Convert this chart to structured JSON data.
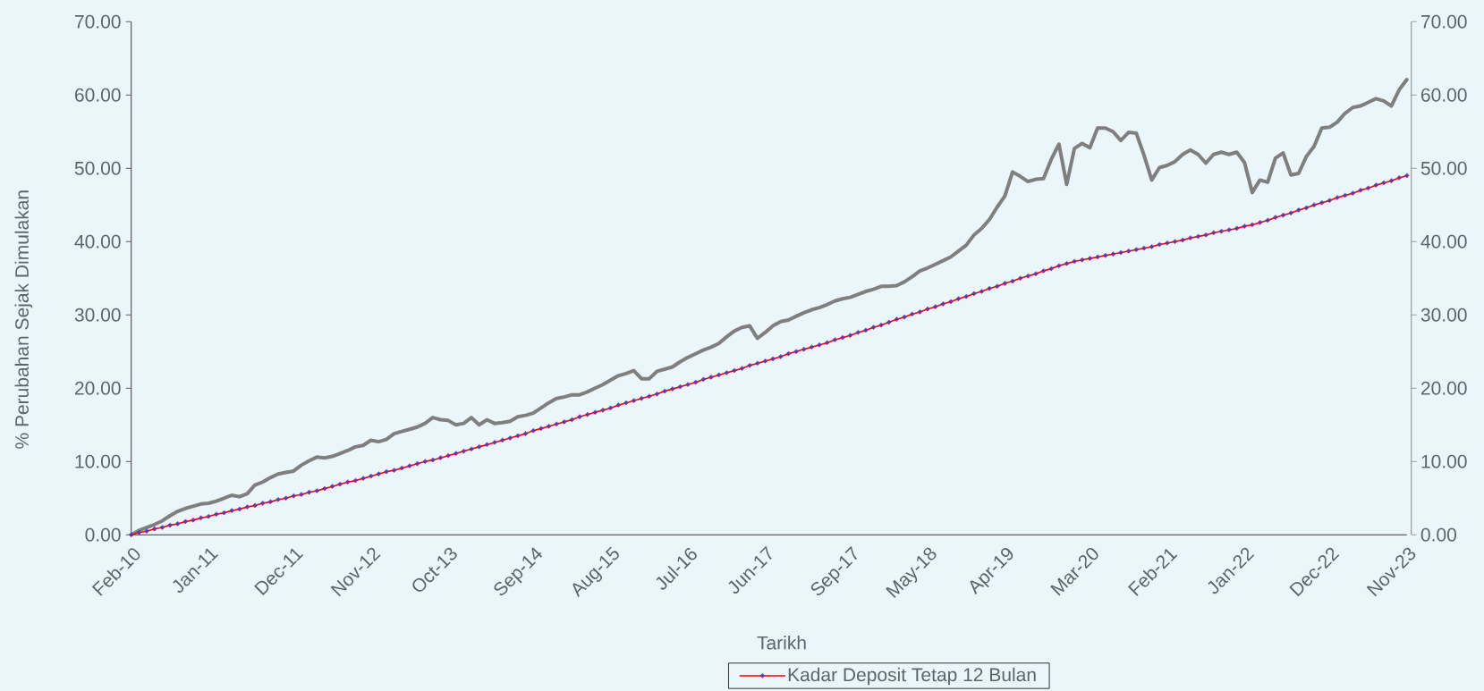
{
  "chart_data": {
    "type": "line",
    "xlabel": "Tarikh",
    "ylabel": "% Perubahan Sejak Dimulakan",
    "categories": [
      "Feb-10",
      null,
      null,
      null,
      null,
      null,
      null,
      null,
      null,
      null,
      "Jan-11",
      null,
      null,
      null,
      null,
      null,
      null,
      null,
      null,
      null,
      null,
      "Dec-11",
      null,
      null,
      null,
      null,
      null,
      null,
      null,
      null,
      null,
      "Nov-12",
      null,
      null,
      null,
      null,
      null,
      null,
      null,
      null,
      null,
      "Oct-13",
      null,
      null,
      null,
      null,
      null,
      null,
      null,
      null,
      null,
      null,
      "Sep-14",
      null,
      null,
      null,
      null,
      null,
      null,
      null,
      null,
      null,
      "Aug-15",
      null,
      null,
      null,
      null,
      null,
      null,
      null,
      null,
      null,
      "Jul-16",
      null,
      null,
      null,
      null,
      null,
      null,
      null,
      null,
      null,
      "Jun-17",
      null,
      null,
      null,
      null,
      null,
      null,
      null,
      null,
      null,
      null,
      "Sep-17",
      null,
      null,
      null,
      null,
      null,
      null,
      null,
      null,
      null,
      "May-18",
      null,
      null,
      null,
      null,
      null,
      null,
      null,
      null,
      null,
      "Apr-19",
      null,
      null,
      null,
      null,
      null,
      null,
      null,
      null,
      null,
      null,
      "Mar-20",
      null,
      null,
      null,
      null,
      null,
      null,
      null,
      null,
      null,
      "Feb-21",
      null,
      null,
      null,
      null,
      null,
      null,
      null,
      null,
      null,
      "Jan-22",
      null,
      null,
      null,
      null,
      null,
      null,
      null,
      null,
      null,
      null,
      "Dec-22",
      null,
      null,
      null,
      null,
      null,
      null,
      null,
      null,
      null,
      "Nov-23"
    ],
    "series": [
      {
        "color": "#7f7f7f",
        "values": [
          0,
          0.6,
          1.0,
          1.4,
          1.9,
          2.6,
          3.2,
          3.6,
          3.9,
          4.2,
          4.3,
          4.6,
          5.0,
          5.4,
          5.2,
          5.6,
          6.8,
          7.2,
          7.8,
          8.3,
          8.5,
          8.7,
          9.5,
          10.1,
          10.6,
          10.5,
          10.7,
          11.1,
          11.5,
          12.0,
          12.2,
          12.9,
          12.7,
          13.0,
          13.8,
          14.1,
          14.4,
          14.7,
          15.2,
          16.0,
          15.7,
          15.6,
          15.0,
          15.2,
          16.0,
          15.0,
          15.7,
          15.2,
          15.3,
          15.5,
          16.1,
          16.3,
          16.6,
          17.3,
          18.0,
          18.6,
          18.8,
          19.1,
          19.1,
          19.5,
          20.0,
          20.5,
          21.1,
          21.7,
          22.0,
          22.4,
          21.3,
          21.3,
          22.3,
          22.6,
          22.9,
          23.6,
          24.2,
          24.7,
          25.2,
          25.6,
          26.1,
          27.0,
          27.8,
          28.3,
          28.5,
          26.8,
          27.6,
          28.5,
          29.1,
          29.3,
          29.8,
          30.3,
          30.7,
          31.0,
          31.4,
          31.9,
          32.2,
          32.4,
          32.8,
          33.2,
          33.5,
          33.9,
          33.9,
          34.0,
          34.5,
          35.2,
          36.0,
          36.4,
          36.9,
          37.4,
          37.9,
          38.7,
          39.5,
          40.9,
          41.8,
          43.0,
          44.7,
          46.2,
          49.5,
          48.9,
          48.2,
          48.5,
          48.6,
          51.2,
          53.3,
          47.8,
          52.7,
          53.4,
          52.8,
          55.5,
          55.5,
          55.0,
          53.8,
          54.9,
          54.8,
          51.8,
          48.4,
          50.1,
          50.4,
          50.9,
          51.9,
          52.5,
          51.9,
          50.7,
          51.9,
          52.2,
          51.9,
          52.2,
          50.8,
          46.7,
          48.4,
          48.1,
          51.4,
          52.1,
          49.1,
          49.3,
          51.6,
          53.0,
          55.5,
          55.6,
          56.3,
          57.5,
          58.3,
          58.5,
          59.0,
          59.5,
          59.2,
          58.5,
          60.7,
          62.1
        ]
      },
      {
        "name": "Kadar Deposit Tetap 12 Bulan",
        "color": "#ff0000",
        "marker": "diamond",
        "values": [
          0,
          0.3,
          0.5,
          0.8,
          1.0,
          1.3,
          1.5,
          1.8,
          2.0,
          2.3,
          2.5,
          2.8,
          3.0,
          3.3,
          3.5,
          3.8,
          4.0,
          4.3,
          4.5,
          4.8,
          5.0,
          5.3,
          5.5,
          5.8,
          6.0,
          6.3,
          6.6,
          6.9,
          7.2,
          7.4,
          7.7,
          8.0,
          8.3,
          8.6,
          8.8,
          9.1,
          9.4,
          9.7,
          10.0,
          10.2,
          10.5,
          10.8,
          11.1,
          11.4,
          11.7,
          12.0,
          12.3,
          12.6,
          12.9,
          13.2,
          13.5,
          13.8,
          14.2,
          14.5,
          14.8,
          15.1,
          15.4,
          15.7,
          16.1,
          16.4,
          16.7,
          17.0,
          17.3,
          17.7,
          18.0,
          18.3,
          18.6,
          18.9,
          19.2,
          19.6,
          19.9,
          20.2,
          20.5,
          20.8,
          21.2,
          21.5,
          21.8,
          22.1,
          22.4,
          22.7,
          23.1,
          23.4,
          23.7,
          24.0,
          24.3,
          24.7,
          25.0,
          25.3,
          25.6,
          25.9,
          26.2,
          26.6,
          26.9,
          27.2,
          27.6,
          27.9,
          28.3,
          28.6,
          29.0,
          29.4,
          29.7,
          30.1,
          30.4,
          30.8,
          31.1,
          31.5,
          31.8,
          32.2,
          32.5,
          32.9,
          33.2,
          33.6,
          33.9,
          34.3,
          34.6,
          35.0,
          35.3,
          35.6,
          36.0,
          36.3,
          36.7,
          37.0,
          37.3,
          37.5,
          37.7,
          37.9,
          38.1,
          38.3,
          38.5,
          38.7,
          38.9,
          39.1,
          39.3,
          39.6,
          39.8,
          40.0,
          40.2,
          40.5,
          40.7,
          40.9,
          41.2,
          41.4,
          41.6,
          41.8,
          42.1,
          42.3,
          42.6,
          42.9,
          43.3,
          43.6,
          43.9,
          44.3,
          44.6,
          45.0,
          45.3,
          45.6,
          46.0,
          46.3,
          46.6,
          47.0,
          47.3,
          47.7,
          48.0,
          48.3,
          48.7,
          49.0
        ]
      }
    ],
    "ylim": [
      0,
      70
    ],
    "yticks": [
      {
        "value": 0,
        "label": "0.00"
      },
      {
        "value": 10,
        "label": "10.00"
      },
      {
        "value": 20,
        "label": "20.00"
      },
      {
        "value": 30,
        "label": "30.00"
      },
      {
        "value": 40,
        "label": "40.00"
      },
      {
        "value": 50,
        "label": "50.00"
      },
      {
        "value": 60,
        "label": "60.00"
      },
      {
        "value": 70,
        "label": "70.00"
      }
    ],
    "y2lim": [
      0,
      70
    ],
    "y2ticks": [
      {
        "value": 0,
        "label": "0.00"
      },
      {
        "value": 10,
        "label": "10.00"
      },
      {
        "value": 20,
        "label": "20.00"
      },
      {
        "value": 30,
        "label": "30.00"
      },
      {
        "value": 40,
        "label": "40.00"
      },
      {
        "value": 50,
        "label": "50.00"
      },
      {
        "value": 60,
        "label": "60.00"
      },
      {
        "value": 70,
        "label": "70.00"
      }
    ],
    "legend": "bottom"
  }
}
